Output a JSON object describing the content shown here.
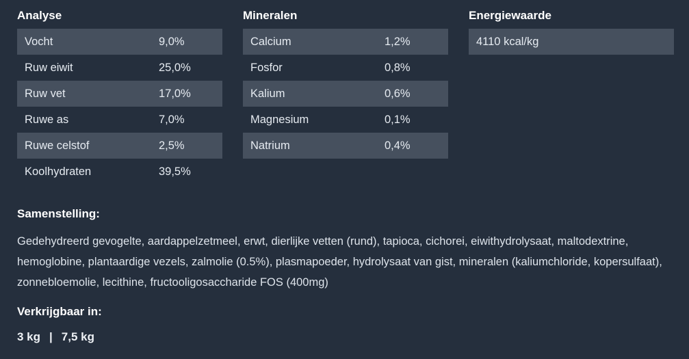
{
  "colors": {
    "background": "#252f3d",
    "row_stripe": "#46505e",
    "heading_text": "#ffffff",
    "body_text": "#dde3ea"
  },
  "tables": {
    "analyse": {
      "title": "Analyse",
      "rows": [
        {
          "label": "Vocht",
          "value": "9,0%"
        },
        {
          "label": "Ruw eiwit",
          "value": "25,0%"
        },
        {
          "label": "Ruw vet",
          "value": "17,0%"
        },
        {
          "label": "Ruwe as",
          "value": "7,0%"
        },
        {
          "label": "Ruwe celstof",
          "value": "2,5%"
        },
        {
          "label": "Koolhydraten",
          "value": "39,5%"
        }
      ]
    },
    "mineralen": {
      "title": "Mineralen",
      "rows": [
        {
          "label": "Calcium",
          "value": "1,2%"
        },
        {
          "label": "Fosfor",
          "value": "0,8%"
        },
        {
          "label": "Kalium",
          "value": "0,6%"
        },
        {
          "label": "Magnesium",
          "value": "0,1%"
        },
        {
          "label": "Natrium",
          "value": "0,4%"
        }
      ]
    },
    "energiewaarde": {
      "title": "Energiewaarde",
      "value": "4110 kcal/kg"
    }
  },
  "samenstelling": {
    "title": "Samenstelling:",
    "text": "Gedehydreerd gevogelte, aardappelzetmeel, erwt, dierlijke vetten (rund), tapioca, cichorei, eiwithydrolysaat, maltodextrine, hemoglobine, plantaardige vezels, zalmolie (0.5%), plasmapoeder, hydrolysaat van gist, mineralen (kaliumchloride, kopersulfaat), zonnebloemolie, lecithine, fructooligosaccharide FOS (400mg)"
  },
  "beschikbaarheid": {
    "title": "Verkrijgbaar in:",
    "sizes": [
      "3 kg",
      "7,5 kg"
    ],
    "separator": "|"
  }
}
